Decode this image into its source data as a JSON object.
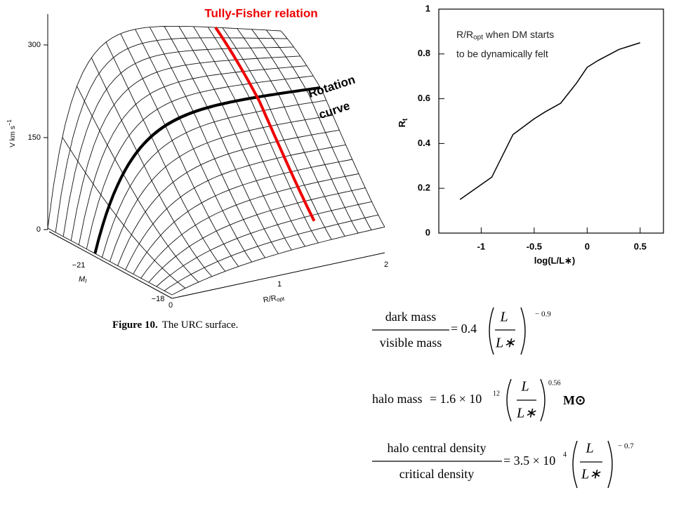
{
  "surface_figure": {
    "y_label": "V   km s",
    "y_label_sup": "−1",
    "y_ticks": [
      "300",
      "150",
      "0"
    ],
    "m_label": "M",
    "m_label_sub": "I",
    "m_ticks": [
      "−21",
      "−18"
    ],
    "r_label": "R/R",
    "r_label_sub": "opt",
    "r_ticks": [
      "0",
      "1",
      "2"
    ],
    "caption_bold": "Figure 10.",
    "caption": "The URC surface.",
    "tully_fisher": "Tully-Fisher relation",
    "rotation_curve": [
      "Rotation",
      "curve"
    ]
  },
  "chart_data": {
    "type": "line",
    "x": [
      -1.2,
      -0.9,
      -0.7,
      -0.5,
      -0.4,
      -0.25,
      -0.1,
      0.0,
      0.1,
      0.3,
      0.5
    ],
    "series": [
      {
        "name": "R_t",
        "color": "#000000",
        "values": [
          0.15,
          0.25,
          0.44,
          0.51,
          0.54,
          0.58,
          0.67,
          0.74,
          0.77,
          0.82,
          0.85
        ]
      }
    ],
    "xlim": [
      -1.4,
      0.72
    ],
    "ylim": [
      0,
      1
    ],
    "xticks": [
      -1,
      -0.5,
      0,
      0.5
    ],
    "yticks": [
      0,
      0.2,
      0.4,
      0.6,
      0.8,
      1
    ],
    "xlabel": "log(L/L∗)",
    "ylabel": "R",
    "ylabel_sub": "t",
    "annotation": {
      "line1": "R/R",
      "line1_sub": "opt",
      "line1_rest": " when DM starts",
      "line2": "to be dynamically felt"
    }
  },
  "equations": [
    {
      "numerator": "dark mass",
      "denominator": "visible mass",
      "coef": "= 0.4",
      "frac_num": "L",
      "frac_den": "L∗",
      "exponent": "− 0.9"
    },
    {
      "lhs": "halo mass",
      "coef": "= 1.6 × 10",
      "power": "12",
      "frac_num": "L",
      "frac_den": "L∗",
      "exponent": "0.56",
      "unit": "M⊙"
    },
    {
      "numerator": "halo central density",
      "denominator": "critical density",
      "coef": "= 3.5 × 10",
      "power": "4",
      "frac_num": "L",
      "frac_den": "L∗",
      "exponent": "− 0.7"
    }
  ]
}
